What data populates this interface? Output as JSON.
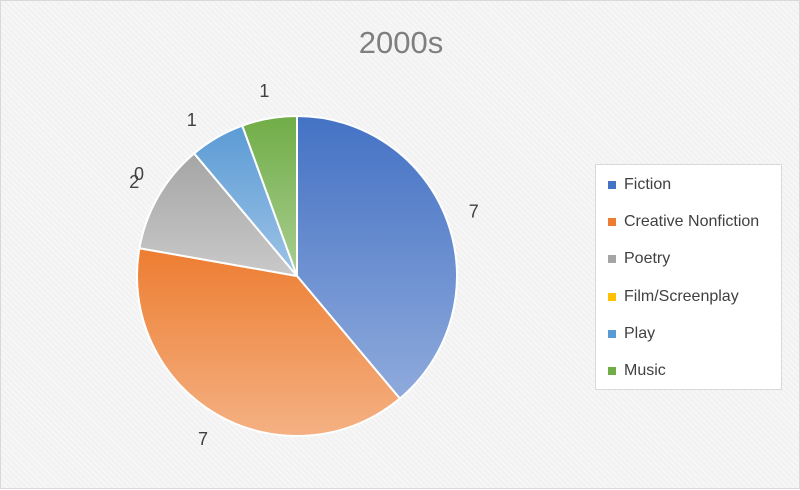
{
  "chart_data": {
    "type": "pie",
    "title": "2000s",
    "categories": [
      "Fiction",
      "Creative Nonfiction",
      "Poetry",
      "Film/Screenplay",
      "Play",
      "Music"
    ],
    "values": [
      7,
      7,
      2,
      0,
      1,
      1
    ],
    "colors": [
      "#4472c4",
      "#ed7d31",
      "#a5a5a5",
      "#ffc000",
      "#5b9bd5",
      "#70ad47"
    ],
    "data_labels": [
      "7",
      "7",
      "2",
      "0",
      "1",
      "1"
    ],
    "legend": "right"
  }
}
